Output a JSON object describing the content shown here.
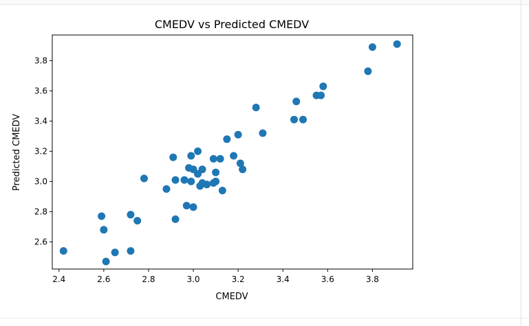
{
  "chart_data": {
    "type": "scatter",
    "title": "CMEDV vs Predicted CMEDV",
    "xlabel": "CMEDV",
    "ylabel": "Predicted CMEDV",
    "xlim": [
      2.37,
      3.98
    ],
    "ylim": [
      2.42,
      3.97
    ],
    "xticks": [
      "2.4",
      "2.6",
      "2.8",
      "3.0",
      "3.2",
      "3.4",
      "3.6",
      "3.8"
    ],
    "yticks": [
      "2.6",
      "2.8",
      "3.0",
      "3.2",
      "3.4",
      "3.6",
      "3.8"
    ],
    "grid": false,
    "marker_color": "#1f77b4",
    "points": [
      {
        "x": 2.42,
        "y": 2.54
      },
      {
        "x": 2.59,
        "y": 2.77
      },
      {
        "x": 2.6,
        "y": 2.68
      },
      {
        "x": 2.61,
        "y": 2.47
      },
      {
        "x": 2.65,
        "y": 2.53
      },
      {
        "x": 2.72,
        "y": 2.54
      },
      {
        "x": 2.72,
        "y": 2.78
      },
      {
        "x": 2.75,
        "y": 2.74
      },
      {
        "x": 2.78,
        "y": 3.02
      },
      {
        "x": 2.88,
        "y": 2.95
      },
      {
        "x": 2.91,
        "y": 3.16
      },
      {
        "x": 2.92,
        "y": 3.01
      },
      {
        "x": 2.92,
        "y": 2.75
      },
      {
        "x": 2.96,
        "y": 3.01
      },
      {
        "x": 2.97,
        "y": 2.84
      },
      {
        "x": 2.98,
        "y": 3.09
      },
      {
        "x": 2.99,
        "y": 3.0
      },
      {
        "x": 2.99,
        "y": 3.17
      },
      {
        "x": 3.0,
        "y": 3.08
      },
      {
        "x": 3.0,
        "y": 2.83
      },
      {
        "x": 3.02,
        "y": 3.2
      },
      {
        "x": 3.02,
        "y": 3.05
      },
      {
        "x": 3.03,
        "y": 2.97
      },
      {
        "x": 3.04,
        "y": 3.08
      },
      {
        "x": 3.04,
        "y": 2.99
      },
      {
        "x": 3.06,
        "y": 2.98
      },
      {
        "x": 3.09,
        "y": 3.15
      },
      {
        "x": 3.09,
        "y": 2.99
      },
      {
        "x": 3.1,
        "y": 3.06
      },
      {
        "x": 3.1,
        "y": 3.0
      },
      {
        "x": 3.12,
        "y": 3.15
      },
      {
        "x": 3.13,
        "y": 2.94
      },
      {
        "x": 3.15,
        "y": 3.28
      },
      {
        "x": 3.18,
        "y": 3.17
      },
      {
        "x": 3.2,
        "y": 3.31
      },
      {
        "x": 3.21,
        "y": 3.12
      },
      {
        "x": 3.22,
        "y": 3.08
      },
      {
        "x": 3.28,
        "y": 3.49
      },
      {
        "x": 3.31,
        "y": 3.32
      },
      {
        "x": 3.45,
        "y": 3.41
      },
      {
        "x": 3.46,
        "y": 3.53
      },
      {
        "x": 3.49,
        "y": 3.41
      },
      {
        "x": 3.55,
        "y": 3.57
      },
      {
        "x": 3.57,
        "y": 3.57
      },
      {
        "x": 3.58,
        "y": 3.63
      },
      {
        "x": 3.78,
        "y": 3.73
      },
      {
        "x": 3.8,
        "y": 3.89
      },
      {
        "x": 3.91,
        "y": 3.91
      }
    ]
  }
}
